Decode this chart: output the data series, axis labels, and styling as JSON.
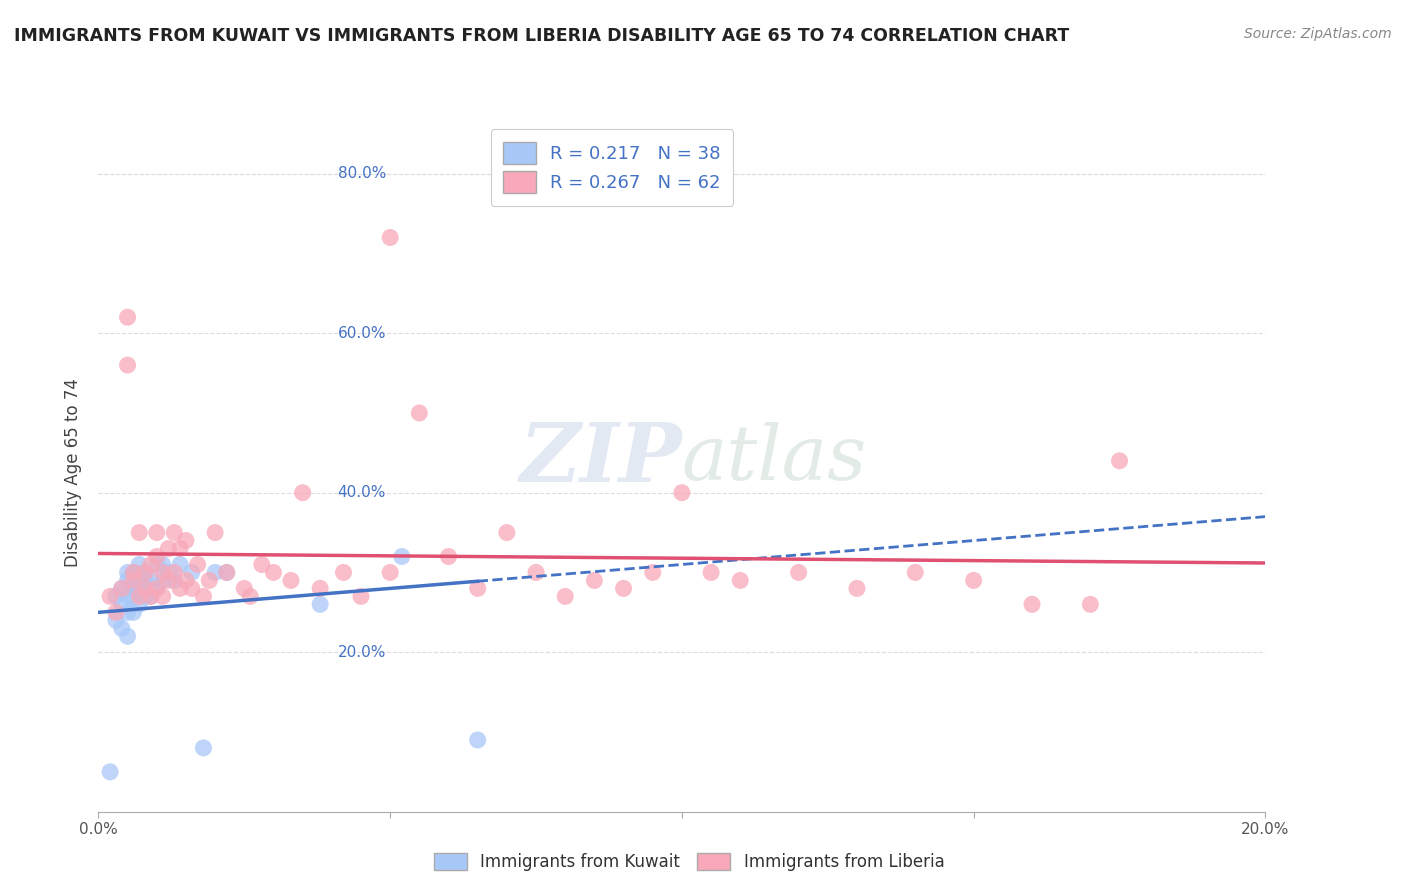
{
  "title": "IMMIGRANTS FROM KUWAIT VS IMMIGRANTS FROM LIBERIA DISABILITY AGE 65 TO 74 CORRELATION CHART",
  "source": "Source: ZipAtlas.com",
  "ylabel": "Disability Age 65 to 74",
  "kuwait_R": 0.217,
  "kuwait_N": 38,
  "liberia_R": 0.267,
  "liberia_N": 62,
  "kuwait_color": "#a8c8f8",
  "liberia_color": "#f8a8b8",
  "kuwait_line_color": "#4472c4",
  "liberia_line_color": "#e05070",
  "watermark_color": "#d0d8e8",
  "background_color": "#ffffff",
  "grid_color": "#dddddd",
  "right_axis_color": "#4472c4",
  "kuwait_scatter_x": [
    0.002,
    0.003,
    0.003,
    0.004,
    0.004,
    0.004,
    0.005,
    0.005,
    0.005,
    0.005,
    0.005,
    0.006,
    0.006,
    0.006,
    0.006,
    0.007,
    0.007,
    0.007,
    0.007,
    0.008,
    0.008,
    0.008,
    0.009,
    0.009,
    0.01,
    0.01,
    0.011,
    0.011,
    0.012,
    0.013,
    0.014,
    0.016,
    0.018,
    0.02,
    0.022,
    0.038,
    0.052,
    0.065
  ],
  "kuwait_scatter_y": [
    0.05,
    0.24,
    0.27,
    0.23,
    0.26,
    0.28,
    0.22,
    0.25,
    0.27,
    0.29,
    0.3,
    0.25,
    0.27,
    0.28,
    0.3,
    0.26,
    0.28,
    0.29,
    0.31,
    0.27,
    0.29,
    0.3,
    0.27,
    0.29,
    0.28,
    0.31,
    0.29,
    0.31,
    0.3,
    0.29,
    0.31,
    0.3,
    0.08,
    0.3,
    0.3,
    0.26,
    0.32,
    0.09
  ],
  "liberia_scatter_x": [
    0.002,
    0.003,
    0.004,
    0.005,
    0.005,
    0.006,
    0.006,
    0.007,
    0.007,
    0.008,
    0.008,
    0.009,
    0.009,
    0.01,
    0.01,
    0.01,
    0.011,
    0.011,
    0.012,
    0.012,
    0.013,
    0.013,
    0.014,
    0.014,
    0.015,
    0.015,
    0.016,
    0.017,
    0.018,
    0.019,
    0.02,
    0.022,
    0.025,
    0.026,
    0.028,
    0.03,
    0.033,
    0.035,
    0.038,
    0.042,
    0.045,
    0.05,
    0.055,
    0.06,
    0.065,
    0.07,
    0.075,
    0.08,
    0.085,
    0.09,
    0.095,
    0.1,
    0.105,
    0.11,
    0.12,
    0.13,
    0.14,
    0.15,
    0.16,
    0.175,
    0.05,
    0.17
  ],
  "liberia_scatter_y": [
    0.27,
    0.25,
    0.28,
    0.56,
    0.62,
    0.29,
    0.3,
    0.27,
    0.35,
    0.28,
    0.3,
    0.27,
    0.31,
    0.28,
    0.32,
    0.35,
    0.27,
    0.3,
    0.29,
    0.33,
    0.3,
    0.35,
    0.28,
    0.33,
    0.29,
    0.34,
    0.28,
    0.31,
    0.27,
    0.29,
    0.35,
    0.3,
    0.28,
    0.27,
    0.31,
    0.3,
    0.29,
    0.4,
    0.28,
    0.3,
    0.27,
    0.3,
    0.5,
    0.32,
    0.28,
    0.35,
    0.3,
    0.27,
    0.29,
    0.28,
    0.3,
    0.4,
    0.3,
    0.29,
    0.3,
    0.28,
    0.3,
    0.29,
    0.26,
    0.44,
    0.72,
    0.26
  ]
}
